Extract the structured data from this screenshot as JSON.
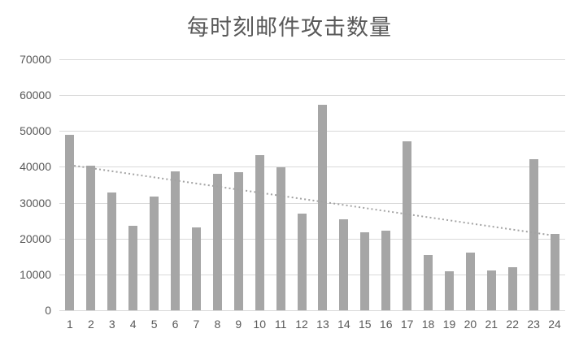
{
  "chart_data": {
    "type": "bar",
    "title": "每时刻邮件攻击数量",
    "categories": [
      "1",
      "2",
      "3",
      "4",
      "5",
      "6",
      "7",
      "8",
      "9",
      "10",
      "11",
      "12",
      "13",
      "14",
      "15",
      "16",
      "17",
      "18",
      "19",
      "20",
      "21",
      "22",
      "23",
      "24"
    ],
    "values": [
      49000,
      40300,
      32900,
      23500,
      31800,
      38700,
      23000,
      38000,
      38600,
      43300,
      39800,
      26900,
      57300,
      25300,
      21700,
      22100,
      47200,
      15400,
      10800,
      16200,
      11000,
      12100,
      42200,
      21300
    ],
    "xlabel": "",
    "ylabel": "",
    "ylim": [
      0,
      70000
    ],
    "yticks": [
      0,
      10000,
      20000,
      30000,
      40000,
      50000,
      60000,
      70000
    ],
    "ytick_labels": [
      "0",
      "10000",
      "20000",
      "30000",
      "40000",
      "50000",
      "60000",
      "70000"
    ],
    "grid": "horizontal",
    "legend": "none",
    "trendline": {
      "type": "linear",
      "style": "dotted",
      "start_value": 40500,
      "end_value": 20800
    },
    "colors": {
      "bar": "#a6a6a6",
      "gridline": "#d9d9d9",
      "trendline": "#a3a3a3",
      "axis_text": "#595959",
      "title_text": "#595959",
      "background": "#ffffff"
    }
  }
}
